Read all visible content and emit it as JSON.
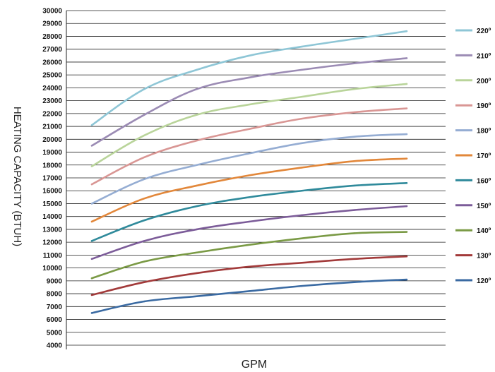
{
  "chart_data": {
    "type": "line",
    "xlabel": "GPM",
    "ylabel": "HEATING CAPACITY (BTUH)",
    "ylim": [
      4000,
      30000
    ],
    "y_ticks": [
      "4000",
      "5000",
      "6000",
      "7000",
      "8000",
      "9000",
      "10000",
      "11000",
      "12000",
      "13000",
      "14000",
      "15000",
      "16000",
      "17000",
      "18000",
      "19000",
      "20000",
      "21000",
      "22000",
      "23000",
      "24000",
      "25000",
      "26000",
      "27000",
      "28000",
      "29000",
      "30000"
    ],
    "grid": "horizontal",
    "legend_position": "right",
    "x_points": 7,
    "series": [
      {
        "name": "220º",
        "color": "#8ec6d6",
        "values": [
          21100,
          23900,
          25400,
          26500,
          27200,
          27800,
          28400
        ]
      },
      {
        "name": "210º",
        "color": "#9b8bb4",
        "values": [
          19500,
          21900,
          23900,
          24800,
          25400,
          25900,
          26300
        ]
      },
      {
        "name": "200º",
        "color": "#b9d49a",
        "values": [
          17900,
          20300,
          21900,
          22700,
          23300,
          23900,
          24300
        ]
      },
      {
        "name": "190º",
        "color": "#d99694",
        "values": [
          16500,
          18600,
          19900,
          20800,
          21600,
          22100,
          22400
        ]
      },
      {
        "name": "180º",
        "color": "#95add3",
        "values": [
          15000,
          16900,
          18000,
          18900,
          19700,
          20200,
          20400
        ]
      },
      {
        "name": "170º",
        "color": "#e2873a",
        "values": [
          13600,
          15400,
          16400,
          17200,
          17800,
          18300,
          18500
        ]
      },
      {
        "name": "160º",
        "color": "#2f8a9b",
        "values": [
          12100,
          13700,
          14800,
          15500,
          16000,
          16400,
          16600
        ]
      },
      {
        "name": "150º",
        "color": "#7c5c99",
        "values": [
          10700,
          12100,
          13000,
          13600,
          14100,
          14500,
          14800
        ]
      },
      {
        "name": "140º",
        "color": "#7a9a45",
        "values": [
          9200,
          10500,
          11200,
          11800,
          12300,
          12700,
          12800
        ]
      },
      {
        "name": "130º",
        "color": "#a23a3a",
        "values": [
          7900,
          8900,
          9600,
          10100,
          10400,
          10700,
          10900
        ]
      },
      {
        "name": "120º",
        "color": "#3a6aa2",
        "values": [
          6500,
          7400,
          7800,
          8200,
          8600,
          8900,
          9100
        ]
      }
    ]
  }
}
